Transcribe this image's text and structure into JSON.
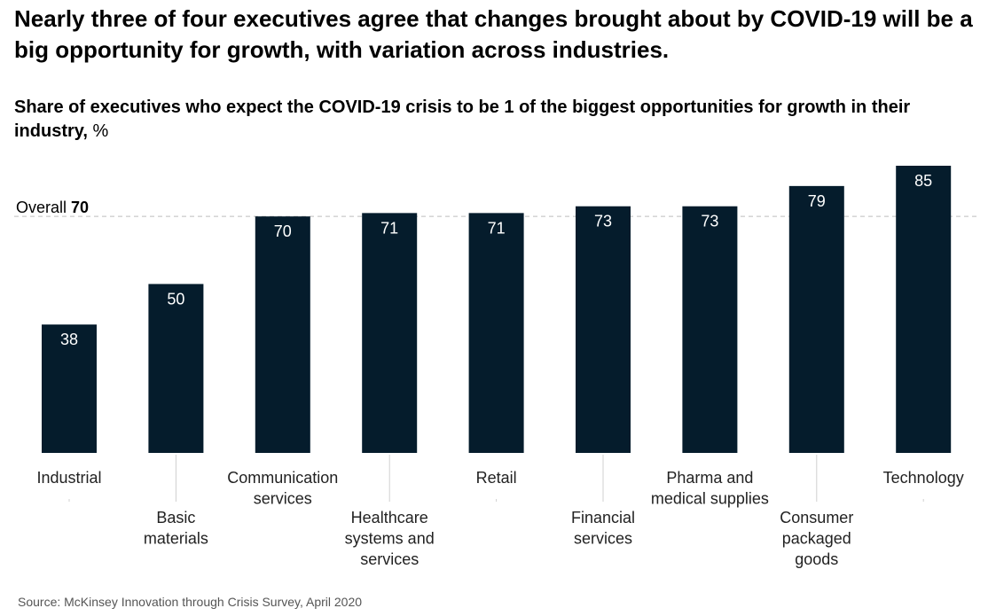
{
  "header": {
    "title": "Nearly three of four executives agree that changes brought about by COVID-19 will be a big opportunity for growth, with variation across industries.",
    "subtitle_bold": "Share of executives who expect the COVID-19 crisis to be 1 of the biggest opportunities for growth in their industry,",
    "subtitle_unit": " %"
  },
  "footer": {
    "source": "Source: McKinsey Innovation through Crisis Survey, April 2020"
  },
  "colors": {
    "bar": "#051c2c",
    "value_label": "#ffffff",
    "reference_line": "#bdbdbd"
  },
  "chart_data": {
    "type": "bar",
    "categories": [
      [
        "Industrial"
      ],
      [
        "Basic",
        "materials"
      ],
      [
        "Communication",
        "services"
      ],
      [
        "Healthcare",
        "systems and",
        "services"
      ],
      [
        "Retail"
      ],
      [
        "Financial",
        "services"
      ],
      [
        "Pharma and",
        "medical supplies"
      ],
      [
        "Consumer",
        "packaged",
        "goods"
      ],
      [
        "Technology"
      ]
    ],
    "values": [
      38,
      50,
      70,
      71,
      71,
      73,
      73,
      79,
      85
    ],
    "reference": {
      "label": "Overall",
      "value": 70
    },
    "ylim": [
      0,
      85
    ],
    "grid": false,
    "legend": "none"
  }
}
